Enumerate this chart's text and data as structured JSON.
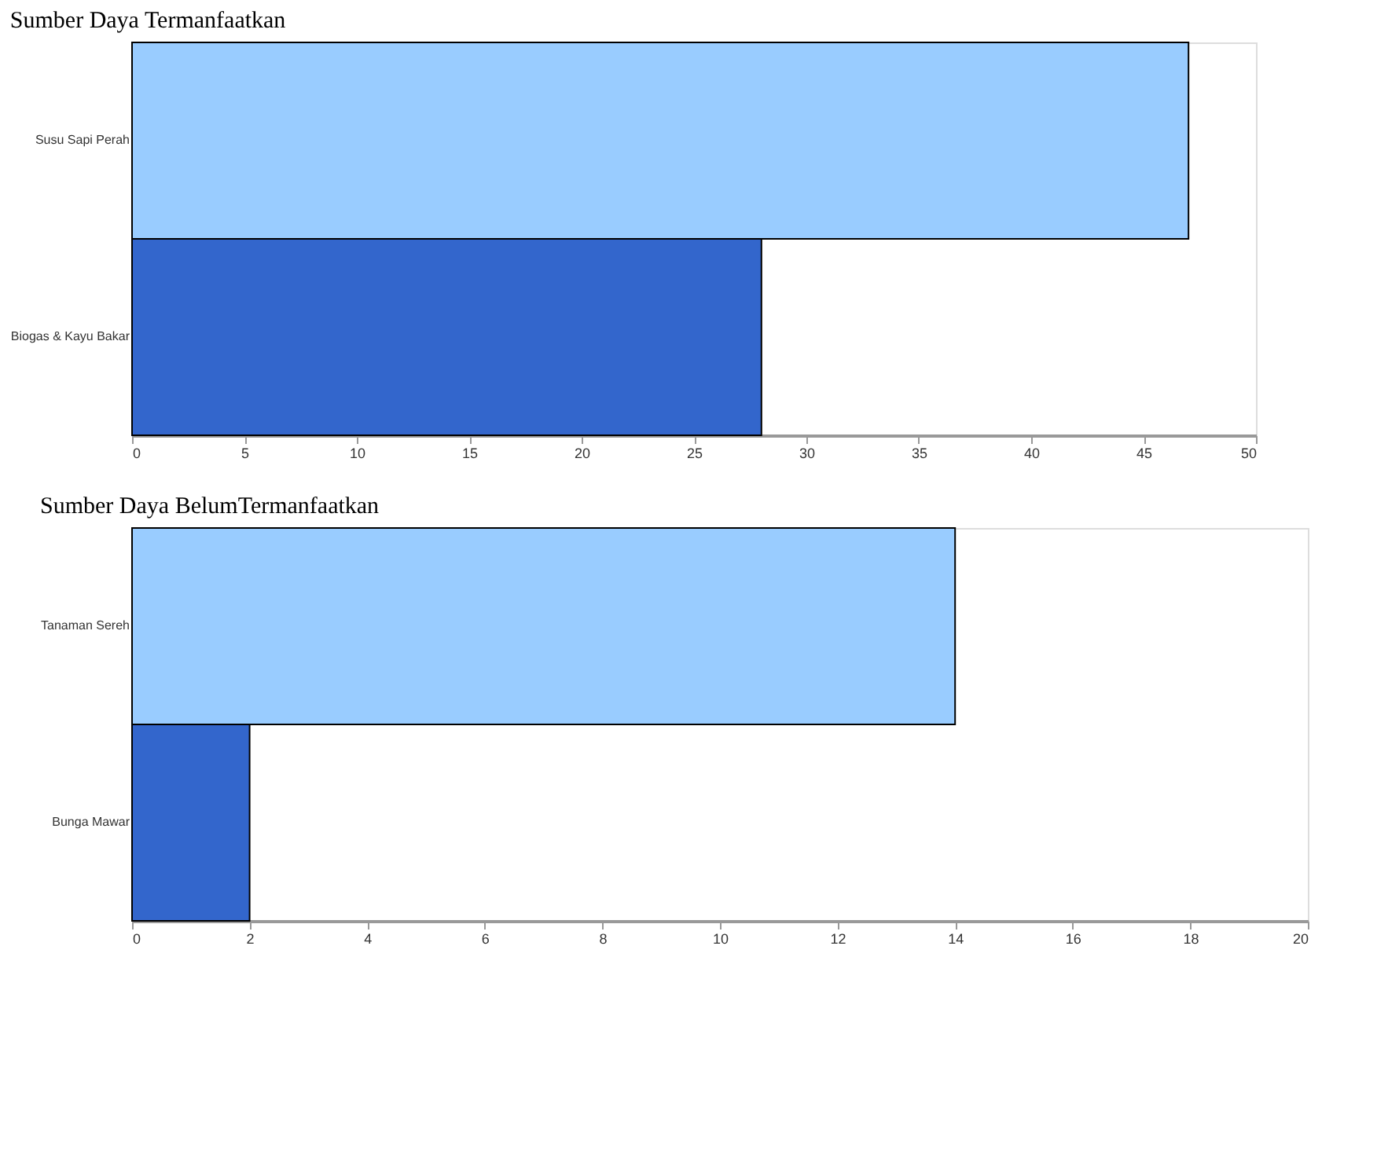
{
  "chart_data": [
    {
      "type": "bar",
      "orientation": "horizontal",
      "title": "Sumber Daya Termanfaatkan",
      "categories": [
        "Susu Sapi Perah",
        "Biogas & Kayu Bakar"
      ],
      "values": [
        47,
        28
      ],
      "colors": [
        "#99ccff",
        "#3366cc"
      ],
      "xlim": [
        0,
        50
      ],
      "xticks": [
        0,
        5,
        10,
        15,
        20,
        25,
        30,
        35,
        40,
        45,
        50
      ]
    },
    {
      "type": "bar",
      "orientation": "horizontal",
      "title": "Sumber Daya BelumTermanfaatkan",
      "categories": [
        "Tanaman Sereh",
        "Bunga Mawar"
      ],
      "values": [
        14,
        2
      ],
      "colors": [
        "#99ccff",
        "#3366cc"
      ],
      "xlim": [
        0,
        20
      ],
      "xticks": [
        0,
        2,
        4,
        6,
        8,
        10,
        12,
        14,
        16,
        18,
        20
      ]
    }
  ]
}
